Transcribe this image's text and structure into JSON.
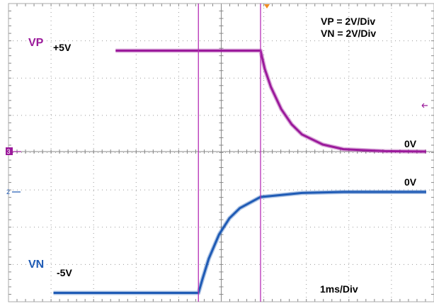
{
  "chart_data": {
    "type": "line",
    "divisions": {
      "x": 10,
      "y": 8
    },
    "scale": {
      "VP": "VP = 2V/Div",
      "VN": "VN = 2V/Div",
      "time": "1ms/Div"
    },
    "series": [
      {
        "name": "VP",
        "color": "#9b1a9b",
        "initial_label": "+5V",
        "final_label": "0V",
        "channel": "3",
        "x_ms": [
          -3.5,
          0.0,
          0.1,
          0.25,
          0.5,
          0.75,
          1.0,
          1.5,
          2.0,
          3.0,
          4.0
        ],
        "y_v": [
          5.0,
          5.0,
          4.1,
          3.2,
          2.1,
          1.35,
          0.85,
          0.35,
          0.12,
          0.02,
          0.0
        ]
      },
      {
        "name": "VN",
        "color": "#1f5bb5",
        "initial_label": "-5V",
        "final_label": "0V",
        "channel": "2",
        "x_ms": [
          -5.0,
          -1.5,
          -1.4,
          -1.25,
          -1.0,
          -0.75,
          -0.5,
          0.0,
          1.0,
          2.0,
          4.0
        ],
        "y_v": [
          -5.0,
          -5.0,
          -4.3,
          -3.3,
          -2.1,
          -1.3,
          -0.8,
          -0.25,
          -0.05,
          0.0,
          0.0
        ]
      }
    ],
    "cursors_ms": [
      -1.5,
      0.0
    ],
    "colors": {
      "grid": "#999999",
      "cursor": "#b52eb5",
      "trigger": "#f08c20"
    }
  }
}
